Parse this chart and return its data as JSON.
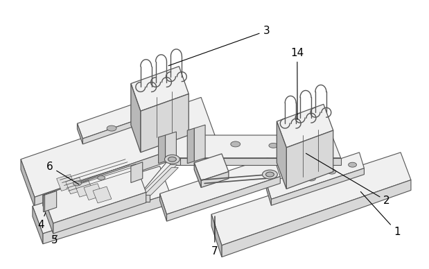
{
  "bg_color": "#ffffff",
  "line_color": "#555555",
  "light_fill": "#f0f0f0",
  "mid_fill": "#d8d8d8",
  "dark_fill": "#b8b8b8",
  "very_dark": "#a0a0a0",
  "fig_width": 6.19,
  "fig_height": 3.88,
  "dpi": 100,
  "label_fontsize": 11
}
